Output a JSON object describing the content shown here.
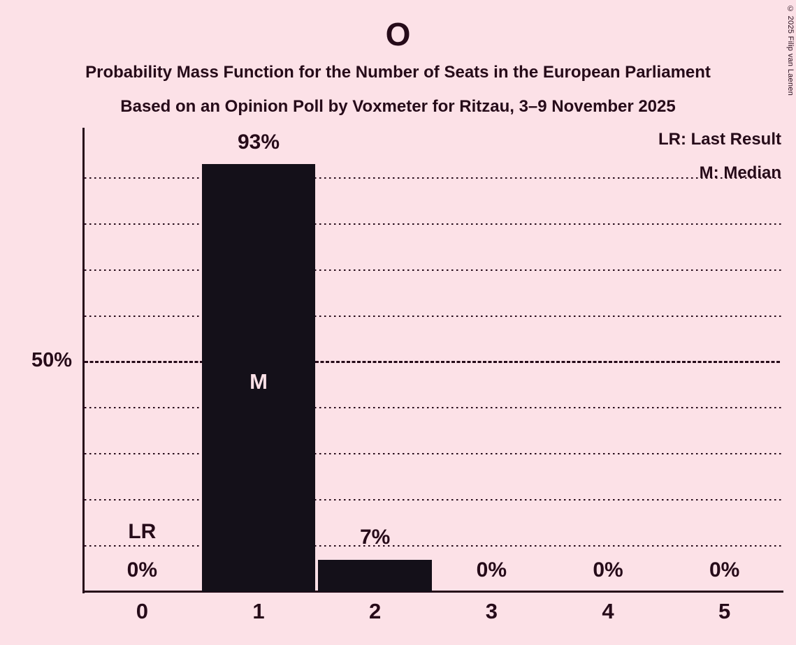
{
  "header": {
    "title": "O",
    "subtitle1": "Probability Mass Function for the Number of Seats in the European Parliament",
    "subtitle2": "Based on an Opinion Poll by Voxmeter for Ritzau, 3–9 November 2025",
    "copyright": "© 2025 Filip van Laenen"
  },
  "legend": {
    "lr": "LR: Last Result",
    "m": "M: Median"
  },
  "y_axis": {
    "label_50": "50%"
  },
  "chart_data": {
    "type": "bar",
    "title": "O",
    "categories": [
      "0",
      "1",
      "2",
      "3",
      "4",
      "5"
    ],
    "values": [
      0,
      93,
      7,
      0,
      0,
      0
    ],
    "value_labels": [
      "0%",
      "93%",
      "7%",
      "0%",
      "0%",
      "0%"
    ],
    "ylim": [
      0,
      100
    ],
    "y_tick_labels": [
      "50%"
    ],
    "gridlines_pct": [
      10,
      20,
      30,
      40,
      50,
      60,
      70,
      80,
      90
    ],
    "emphasized_gridline_pct": 50,
    "grid": "horizontal dotted",
    "legend_position": "top-right",
    "legend_entries": [
      "LR: Last Result",
      "M: Median"
    ],
    "annotations": [
      {
        "label": "LR",
        "meaning": "Last Result",
        "category": "0"
      },
      {
        "label": "M",
        "meaning": "Median",
        "category": "1"
      }
    ]
  },
  "colors": {
    "background": "#fce1e7",
    "bar": "#141019",
    "text": "#260b19"
  }
}
